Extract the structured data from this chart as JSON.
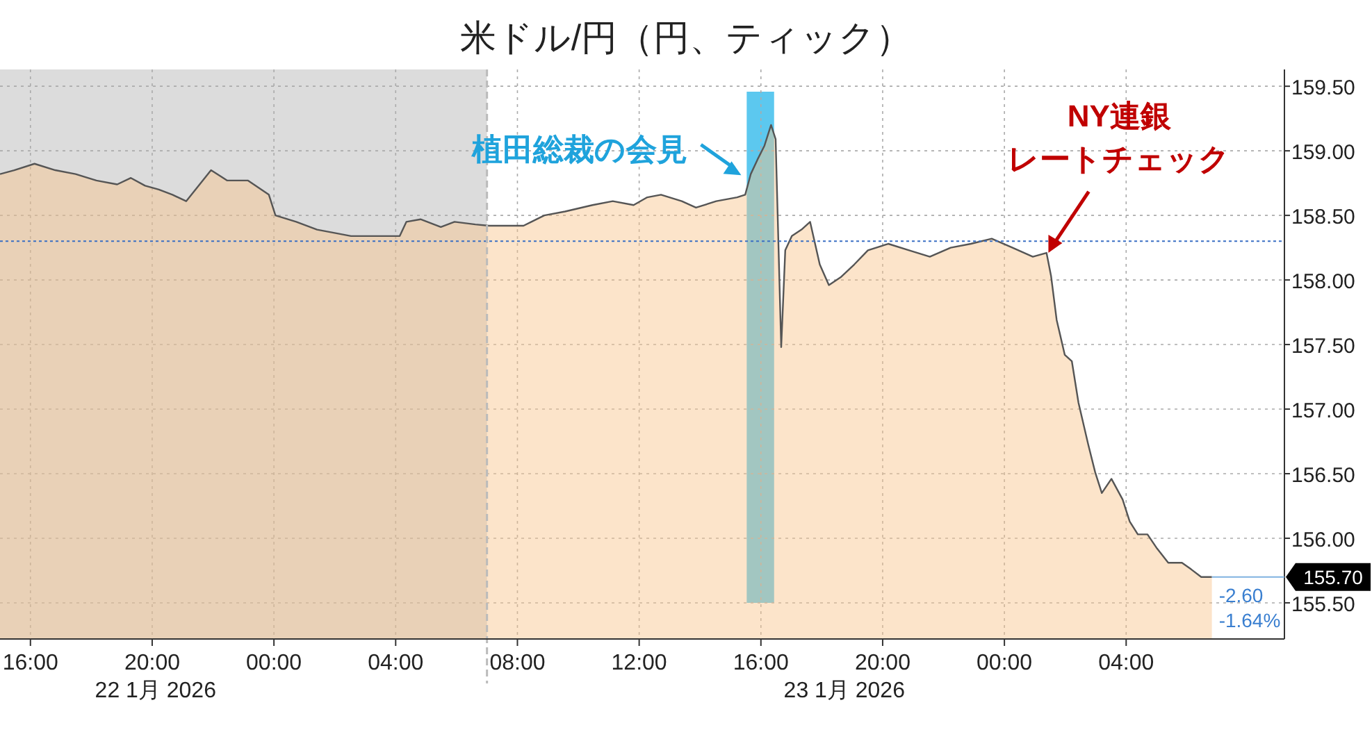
{
  "chart_data": {
    "type": "area",
    "title": "米ドル/円（円、ティック）",
    "xlim": [
      "2026-01-22T15:00",
      "2026-01-24T09:12"
    ],
    "ylim": [
      155.22,
      159.63
    ],
    "xticks": [
      {
        "value": "2026-01-22T16:00",
        "label": "16:00"
      },
      {
        "value": "2026-01-22T20:00",
        "label": "20:00"
      },
      {
        "value": "2026-01-23T00:00",
        "label": "00:00"
      },
      {
        "value": "2026-01-23T04:00",
        "label": "04:00"
      },
      {
        "value": "2026-01-23T08:00",
        "label": "08:00"
      },
      {
        "value": "2026-01-23T12:00",
        "label": "12:00"
      },
      {
        "value": "2026-01-23T16:00",
        "label": "16:00"
      },
      {
        "value": "2026-01-23T20:00",
        "label": "20:00"
      },
      {
        "value": "2026-01-24T00:00",
        "label": "00:00"
      },
      {
        "value": "2026-01-24T04:00",
        "label": "04:00"
      }
    ],
    "yticks": [
      {
        "value": 155.5,
        "label": "155.50"
      },
      {
        "value": 156.0,
        "label": "156.00"
      },
      {
        "value": 156.5,
        "label": "156.50"
      },
      {
        "value": 157.0,
        "label": "157.00"
      },
      {
        "value": 157.5,
        "label": "157.50"
      },
      {
        "value": 158.0,
        "label": "158.00"
      },
      {
        "value": 158.5,
        "label": "158.50"
      },
      {
        "value": 159.0,
        "label": "159.00"
      },
      {
        "value": 159.5,
        "label": "159.50"
      }
    ],
    "grid": true,
    "series": [
      {
        "color": "#555555",
        "x": [
          "2026-01-22T15:00",
          "2026-01-22T15:28",
          "2026-01-22T16:08",
          "2026-01-22T16:49",
          "2026-01-22T17:29",
          "2026-01-22T18:10",
          "2026-01-22T18:51",
          "2026-01-22T19:18",
          "2026-01-22T19:46",
          "2026-01-22T20:13",
          "2026-01-22T20:40",
          "2026-01-22T21:07",
          "2026-01-22T21:56",
          "2026-01-22T22:28",
          "2026-01-22T23:09",
          "2026-01-22T23:50",
          "2026-01-23T00:03",
          "2026-01-23T00:44",
          "2026-01-23T01:25",
          "2026-01-23T02:05",
          "2026-01-23T02:32",
          "2026-01-23T03:13",
          "2026-01-23T04:08",
          "2026-01-23T04:21",
          "2026-01-23T04:49",
          "2026-01-23T05:29",
          "2026-01-23T05:56",
          "2026-01-23T06:37",
          "2026-01-23T07:04",
          "2026-01-23T07:31",
          "2026-01-23T08:12",
          "2026-01-23T08:53",
          "2026-01-23T09:34",
          "2026-01-23T10:28",
          "2026-01-23T11:08",
          "2026-01-23T11:49",
          "2026-01-23T12:16",
          "2026-01-23T12:43",
          "2026-01-23T13:24",
          "2026-01-23T13:52",
          "2026-01-23T14:32",
          "2026-01-23T15:13",
          "2026-01-23T15:29",
          "2026-01-23T15:40",
          "2026-01-23T15:53",
          "2026-01-23T16:07",
          "2026-01-23T16:20",
          "2026-01-23T16:29",
          "2026-01-23T16:40",
          "2026-01-23T16:48",
          "2026-01-23T17:01",
          "2026-01-23T17:20",
          "2026-01-23T17:37",
          "2026-01-23T17:56",
          "2026-01-23T18:14",
          "2026-01-23T18:37",
          "2026-01-23T19:04",
          "2026-01-23T19:31",
          "2026-01-23T20:11",
          "2026-01-23T20:52",
          "2026-01-23T21:33",
          "2026-01-23T22:14",
          "2026-01-23T22:54",
          "2026-01-23T23:35",
          "2026-01-24T00:16",
          "2026-01-24T00:56",
          "2026-01-24T01:23",
          "2026-01-24T01:32",
          "2026-01-24T01:43",
          "2026-01-24T01:59",
          "2026-01-24T02:13",
          "2026-01-24T02:26",
          "2026-01-24T02:45",
          "2026-01-24T02:59",
          "2026-01-24T03:12",
          "2026-01-24T03:31",
          "2026-01-24T03:53",
          "2026-01-24T04:07",
          "2026-01-24T04:23",
          "2026-01-24T04:42",
          "2026-01-24T05:01",
          "2026-01-24T05:23",
          "2026-01-24T05:50",
          "2026-01-24T06:08",
          "2026-01-24T06:28",
          "2026-01-24T06:49"
        ],
        "values": [
          158.82,
          158.85,
          158.9,
          158.85,
          158.82,
          158.77,
          158.74,
          158.79,
          158.73,
          158.7,
          158.66,
          158.61,
          158.85,
          158.77,
          158.77,
          158.66,
          158.5,
          158.45,
          158.39,
          158.36,
          158.34,
          158.34,
          158.34,
          158.45,
          158.47,
          158.41,
          158.45,
          158.43,
          158.42,
          158.42,
          158.42,
          158.5,
          158.53,
          158.58,
          158.61,
          158.58,
          158.64,
          158.66,
          158.61,
          158.56,
          158.61,
          158.64,
          158.66,
          158.82,
          158.93,
          159.04,
          159.2,
          159.09,
          157.48,
          158.23,
          158.34,
          158.39,
          158.45,
          158.12,
          157.96,
          158.02,
          158.12,
          158.23,
          158.28,
          158.23,
          158.18,
          158.25,
          158.28,
          158.32,
          158.25,
          158.18,
          158.21,
          158.03,
          157.69,
          157.42,
          157.37,
          157.05,
          156.73,
          156.51,
          156.35,
          156.46,
          156.3,
          156.13,
          156.03,
          156.03,
          155.92,
          155.81,
          155.81,
          155.76,
          155.7,
          155.7
        ]
      }
    ],
    "bands": [
      {
        "axis": "x",
        "from": "2026-01-22T15:00",
        "to": "2026-01-23T07:00",
        "color": "#dcdcdc"
      },
      {
        "axis": "x",
        "from": "2026-01-23T15:32",
        "to": "2026-01-23T16:26",
        "color": "#5cc8ef"
      }
    ],
    "ref_lines": [
      {
        "axis": "y",
        "value": 158.3,
        "color": "#3a6fc4",
        "line_style": "dotted"
      },
      {
        "axis": "x",
        "value": "2026-01-23T07:00",
        "color": "#bbbbbb",
        "line_style": "dashed"
      }
    ],
    "annotations": [
      {
        "text": "植田総裁の会見",
        "x": "2026-01-23T15:24",
        "y": 158.8
      },
      "NY連銀",
      {
        "text": "レートチェック",
        "x": "2026-01-24T01:24",
        "y": 158.2
      },
      {
        "text": "155.70",
        "x": "2026-01-24T06:49",
        "y": 155.7
      },
      "-2.60",
      "-1.64%",
      "22 1月 2026",
      "23 1月 2026"
    ]
  }
}
